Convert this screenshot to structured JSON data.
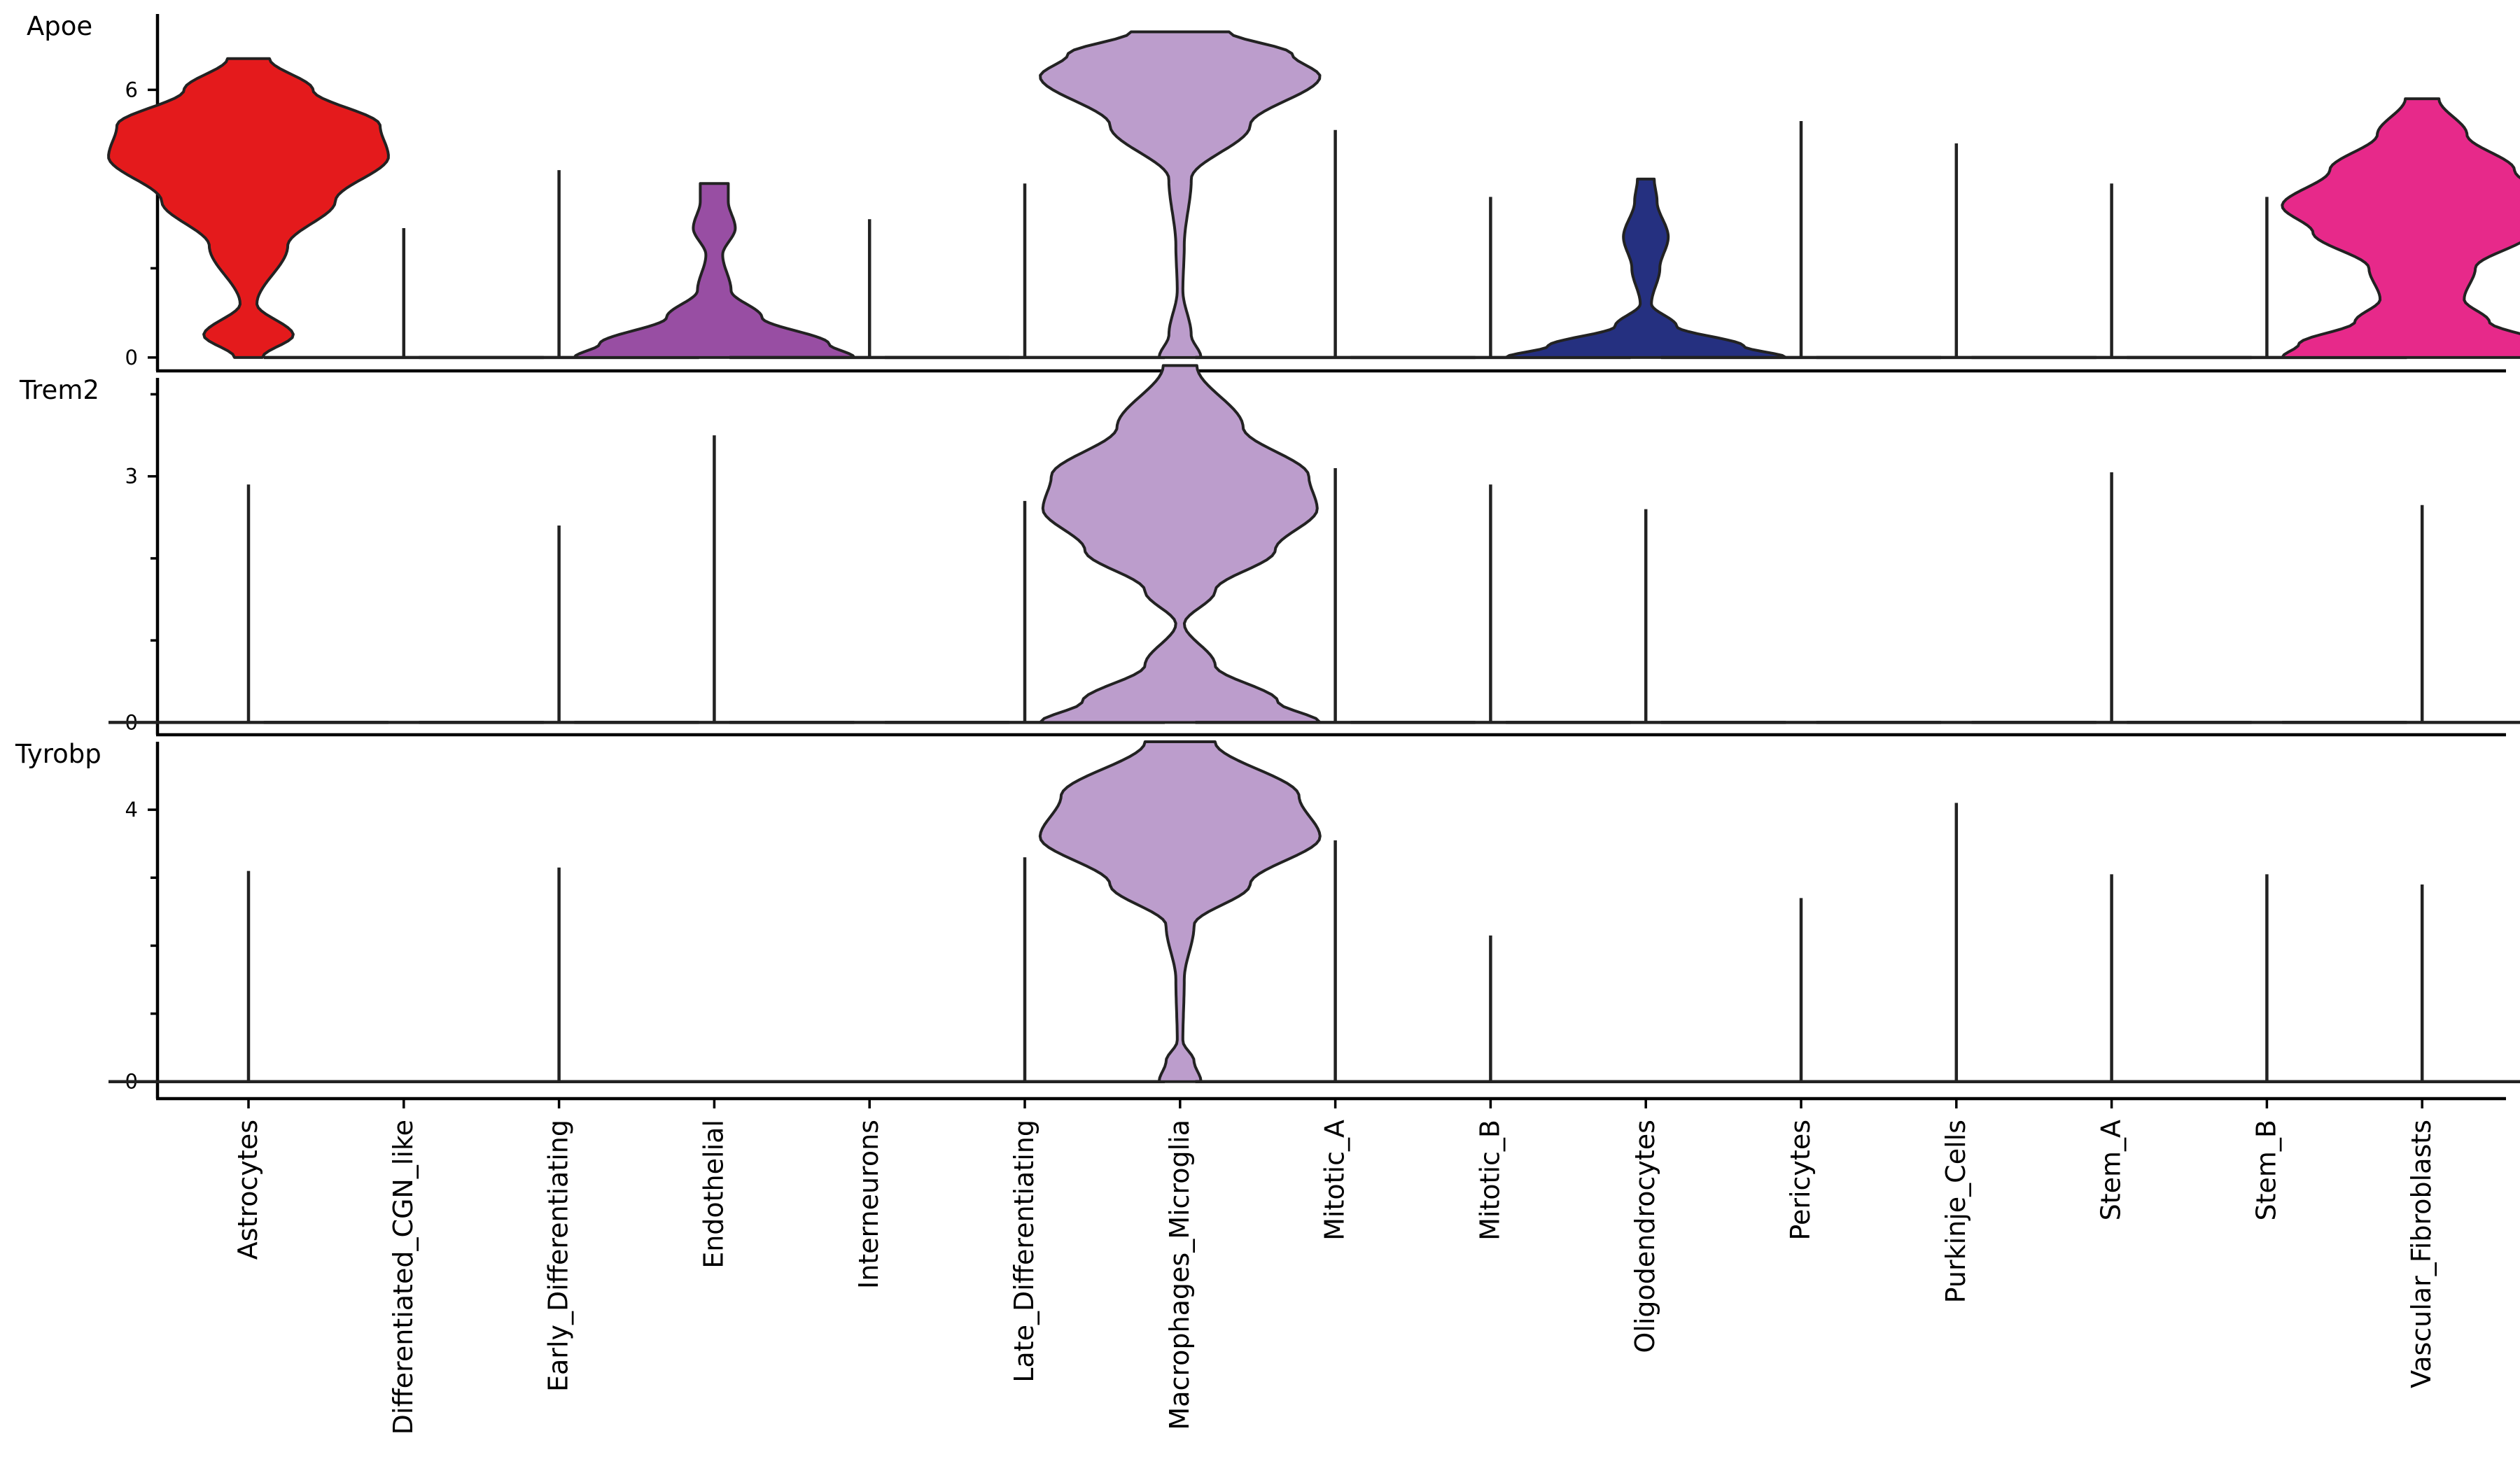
{
  "chart_data": {
    "type": "violin",
    "categories": [
      "Astrocytes",
      "Differentiated_CGN_like",
      "Early_Differentiating",
      "Endothelial",
      "Interneurons",
      "Late_Differentiating",
      "Macrophages_Microglia",
      "Mitotic_A",
      "Mitotic_B",
      "Oligodendrocytes",
      "Pericytes",
      "Purkinje_Cells",
      "Stem_A",
      "Stem_B",
      "Vascular_Fibroblasts"
    ],
    "category_colors": [
      "#e41a1c",
      "#ff7f00",
      "#f0b020",
      "#984ea3",
      "#4daf4a",
      "#80b1d3",
      "#bc9dcc",
      "#2e8b57",
      "#a6761d",
      "#253080",
      "#fdb462",
      "#b3de69",
      "#8dd3c7",
      "#a6cee3",
      "#e7298a"
    ],
    "panels": [
      {
        "gene": "Apoe",
        "ylim": [
          -0.3,
          7.7
        ],
        "yticks": [
          0,
          6
        ],
        "minor_ticks": [
          2,
          4
        ],
        "series": [
          {
            "max": 6.7,
            "shape": [
              [
                0,
                0.1
              ],
              [
                0.5,
                0.32
              ],
              [
                1.2,
                0.06
              ],
              [
                2.5,
                0.28
              ],
              [
                3.5,
                0.62
              ],
              [
                4.5,
                1.0
              ],
              [
                5.2,
                0.94
              ],
              [
                6.0,
                0.46
              ],
              [
                6.7,
                0.15
              ]
            ]
          },
          {
            "max": 2.9,
            "shape": []
          },
          {
            "max": 4.2,
            "shape": []
          },
          {
            "max": 3.9,
            "shape": [
              [
                0,
                1.0
              ],
              [
                0.3,
                0.82
              ],
              [
                0.9,
                0.34
              ],
              [
                1.5,
                0.12
              ],
              [
                2.3,
                0.06
              ],
              [
                2.9,
                0.15
              ],
              [
                3.5,
                0.1
              ],
              [
                3.9,
                0.1
              ]
            ]
          },
          {
            "max": 3.1,
            "shape": []
          },
          {
            "max": 3.9,
            "shape": []
          },
          {
            "max": 7.3,
            "shape": [
              [
                0,
                0.15
              ],
              [
                0.5,
                0.08
              ],
              [
                1.5,
                0.02
              ],
              [
                2.5,
                0.03
              ],
              [
                4.0,
                0.08
              ],
              [
                5.2,
                0.5
              ],
              [
                6.3,
                1.0
              ],
              [
                6.8,
                0.8
              ],
              [
                7.3,
                0.35
              ]
            ]
          },
          {
            "max": 5.1,
            "shape": []
          },
          {
            "max": 3.6,
            "shape": []
          },
          {
            "max": 4.0,
            "shape": [
              [
                0,
                1.0
              ],
              [
                0.25,
                0.7
              ],
              [
                0.7,
                0.22
              ],
              [
                1.2,
                0.04
              ],
              [
                2.0,
                0.1
              ],
              [
                2.7,
                0.16
              ],
              [
                3.5,
                0.08
              ],
              [
                4.0,
                0.06
              ]
            ]
          },
          {
            "max": 5.3,
            "shape": []
          },
          {
            "max": 4.8,
            "shape": []
          },
          {
            "max": 3.9,
            "shape": []
          },
          {
            "max": 3.6,
            "shape": []
          },
          {
            "max": 5.8,
            "shape": [
              [
                0,
                1.0
              ],
              [
                0.3,
                0.88
              ],
              [
                0.8,
                0.48
              ],
              [
                1.3,
                0.3
              ],
              [
                2.0,
                0.38
              ],
              [
                2.8,
                0.78
              ],
              [
                3.4,
                1.0
              ],
              [
                4.2,
                0.66
              ],
              [
                5.0,
                0.32
              ],
              [
                5.8,
                0.12
              ]
            ]
          }
        ]
      },
      {
        "gene": "Trem2",
        "ylim": [
          -0.15,
          4.2
        ],
        "yticks": [
          0,
          3
        ],
        "minor_ticks": [
          1,
          2,
          4
        ],
        "series": [
          {
            "max": 2.9,
            "shape": []
          },
          {
            "max": 0,
            "shape": []
          },
          {
            "max": 2.4,
            "shape": []
          },
          {
            "max": 3.5,
            "shape": []
          },
          {
            "max": 0,
            "shape": []
          },
          {
            "max": 2.7,
            "shape": []
          },
          {
            "max": 4.35,
            "shape": [
              [
                0,
                1.0
              ],
              [
                0.25,
                0.7
              ],
              [
                0.7,
                0.25
              ],
              [
                1.2,
                0.03
              ],
              [
                1.6,
                0.25
              ],
              [
                2.1,
                0.68
              ],
              [
                2.6,
                0.98
              ],
              [
                3.0,
                0.92
              ],
              [
                3.6,
                0.45
              ],
              [
                4.35,
                0.12
              ]
            ]
          },
          {
            "max": 3.1,
            "shape": []
          },
          {
            "max": 2.9,
            "shape": []
          },
          {
            "max": 2.6,
            "shape": []
          },
          {
            "max": 0,
            "shape": []
          },
          {
            "max": 0,
            "shape": []
          },
          {
            "max": 3.05,
            "shape": []
          },
          {
            "max": 0,
            "shape": []
          },
          {
            "max": 2.65,
            "shape": []
          }
        ]
      },
      {
        "gene": "Tyrobp",
        "ylim": [
          -0.25,
          5.0
        ],
        "yticks": [
          0,
          4
        ],
        "minor_ticks": [
          1,
          2,
          3
        ],
        "series": [
          {
            "max": 3.1,
            "shape": []
          },
          {
            "max": 0,
            "shape": []
          },
          {
            "max": 3.15,
            "shape": []
          },
          {
            "max": 0,
            "shape": []
          },
          {
            "max": 0,
            "shape": []
          },
          {
            "max": 3.3,
            "shape": []
          },
          {
            "max": 5.0,
            "shape": [
              [
                0,
                0.15
              ],
              [
                0.3,
                0.1
              ],
              [
                0.6,
                0.02
              ],
              [
                1.5,
                0.03
              ],
              [
                2.3,
                0.1
              ],
              [
                2.9,
                0.5
              ],
              [
                3.6,
                1.0
              ],
              [
                4.2,
                0.85
              ],
              [
                5.0,
                0.25
              ]
            ]
          },
          {
            "max": 3.55,
            "shape": []
          },
          {
            "max": 2.15,
            "shape": []
          },
          {
            "max": 0,
            "shape": []
          },
          {
            "max": 2.7,
            "shape": []
          },
          {
            "max": 4.1,
            "shape": []
          },
          {
            "max": 3.05,
            "shape": []
          },
          {
            "max": 3.05,
            "shape": []
          },
          {
            "max": 2.9,
            "shape": []
          }
        ]
      }
    ],
    "grid": false,
    "legend": "none"
  }
}
